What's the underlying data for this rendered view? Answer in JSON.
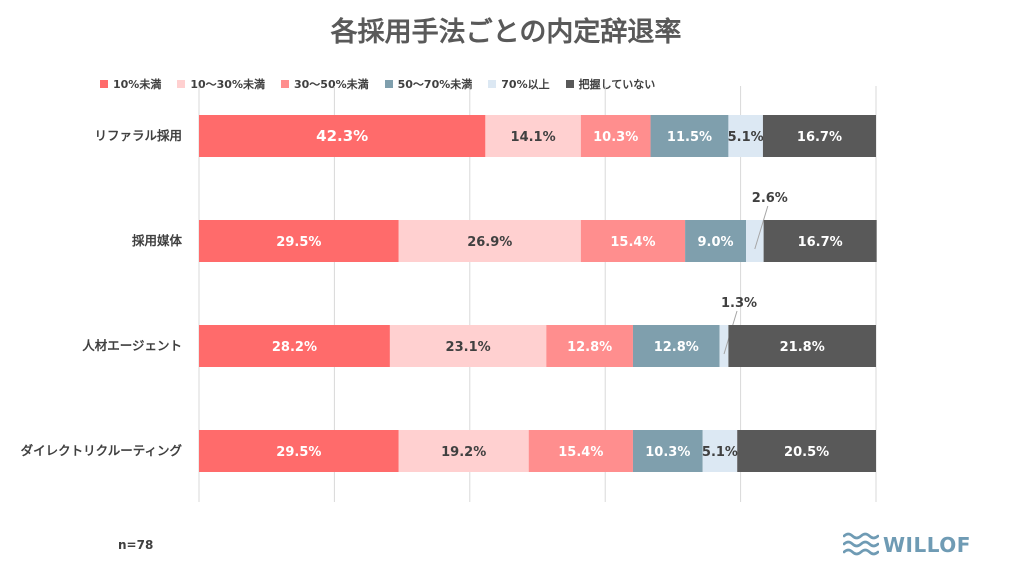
{
  "title": "各採用手法ごとの内定辞退率",
  "n_label": "n=78",
  "logo_text": "WILLOF",
  "colors": {
    "series": [
      "#ff6b6b",
      "#ffd0d0",
      "#ff8e8e",
      "#7f9fad",
      "#dce8f3",
      "#595959"
    ],
    "logo": "#6f9bb4"
  },
  "chart_data": {
    "type": "bar",
    "orientation": "horizontal",
    "stacked": "percent",
    "categories": [
      "リファラル採用",
      "採用媒体",
      "人材エージェント",
      "ダイレクトリクルーティング"
    ],
    "series": [
      {
        "name": "10%未満",
        "values": [
          42.3,
          29.5,
          28.2,
          29.5
        ]
      },
      {
        "name": "10〜30%未満",
        "values": [
          14.1,
          26.9,
          23.1,
          19.2
        ]
      },
      {
        "name": "30〜50%未満",
        "values": [
          10.3,
          15.4,
          12.8,
          15.4
        ]
      },
      {
        "name": "50〜70%未満",
        "values": [
          11.5,
          9.0,
          12.8,
          10.3
        ]
      },
      {
        "name": "70%以上",
        "values": [
          5.1,
          2.6,
          1.3,
          5.1
        ]
      },
      {
        "name": "把握していない",
        "values": [
          16.7,
          16.7,
          21.8,
          20.5
        ]
      }
    ],
    "data_labels": [
      [
        "42.3%",
        "14.1%",
        "10.3%",
        "11.5%",
        "5.1%",
        "16.7%"
      ],
      [
        "29.5%",
        "26.9%",
        "15.4%",
        "9.0%",
        "2.6%",
        "16.7%"
      ],
      [
        "28.2%",
        "23.1%",
        "12.8%",
        "12.8%",
        "1.3%",
        "21.8%"
      ],
      [
        "29.5%",
        "19.2%",
        "15.4%",
        "10.3%",
        "5.1%",
        "20.5%"
      ]
    ],
    "xlim": [
      0,
      100
    ],
    "grid": true,
    "legend_position": "top"
  }
}
